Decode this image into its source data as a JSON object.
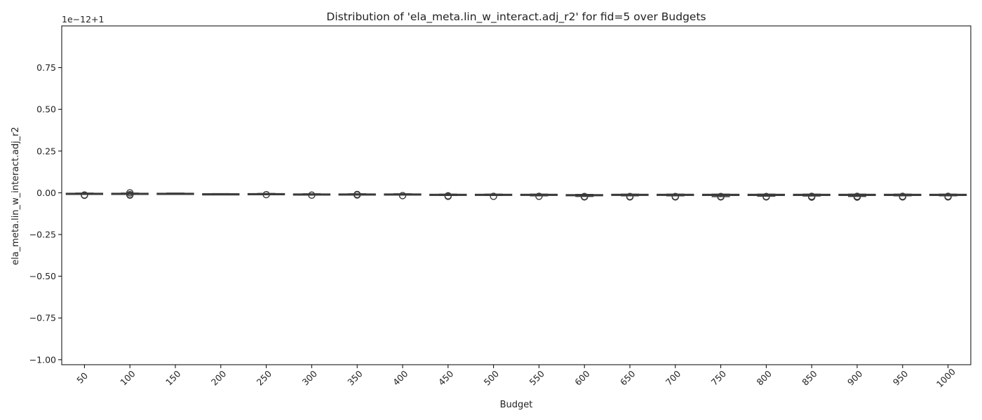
{
  "chart_data": {
    "type": "box",
    "title": "Distribution of 'ela_meta.lin_w_interact.adj_r2' for fid=5 over Budgets",
    "xlabel": "Budget",
    "ylabel": "ela_meta.lin_w_interact.adj_r2",
    "offset_label": "1e−12+1",
    "ylim": [
      -1.03,
      1.0
    ],
    "yticks": [
      {
        "value": 0.75,
        "label": "0.75"
      },
      {
        "value": 0.5,
        "label": "0.50"
      },
      {
        "value": 0.25,
        "label": "0.25"
      },
      {
        "value": 0.0,
        "label": "0.00"
      },
      {
        "value": -0.25,
        "label": "−0.25"
      },
      {
        "value": -0.5,
        "label": "−0.50"
      },
      {
        "value": -0.75,
        "label": "−0.75"
      },
      {
        "value": -1.0,
        "label": "−1.00"
      }
    ],
    "categories": [
      "50",
      "100",
      "150",
      "200",
      "250",
      "300",
      "350",
      "400",
      "450",
      "500",
      "550",
      "600",
      "650",
      "700",
      "750",
      "800",
      "850",
      "900",
      "950",
      "1000"
    ],
    "boxes": [
      {
        "whislo": -0.01,
        "q1": -0.009,
        "med": -0.006,
        "q3": -0.003,
        "whishi": -0.002,
        "fliers": [
          -0.013,
          -0.015
        ]
      },
      {
        "whislo": -0.006,
        "q1": -0.005,
        "med": -0.004,
        "q3": -0.003,
        "whishi": -0.002,
        "fliers": [
          -0.011,
          -0.014,
          0.0
        ]
      },
      {
        "whislo": -0.006,
        "q1": -0.005,
        "med": -0.004,
        "q3": -0.003,
        "whishi": -0.002,
        "fliers": []
      },
      {
        "whislo": -0.007,
        "q1": -0.006,
        "med": -0.006,
        "q3": -0.006,
        "whishi": -0.005,
        "fliers": []
      },
      {
        "whislo": -0.008,
        "q1": -0.007,
        "med": -0.006,
        "q3": -0.005,
        "whishi": -0.004,
        "fliers": [
          -0.011
        ]
      },
      {
        "whislo": -0.012,
        "q1": -0.01,
        "med": -0.009,
        "q3": -0.007,
        "whishi": -0.006,
        "fliers": [
          -0.014
        ]
      },
      {
        "whislo": -0.012,
        "q1": -0.011,
        "med": -0.009,
        "q3": -0.007,
        "whishi": -0.006,
        "fliers": [
          -0.01,
          -0.013
        ]
      },
      {
        "whislo": -0.011,
        "q1": -0.01,
        "med": -0.009,
        "q3": -0.007,
        "whishi": -0.006,
        "fliers": [
          -0.017
        ]
      },
      {
        "whislo": -0.016,
        "q1": -0.014,
        "med": -0.012,
        "q3": -0.009,
        "whishi": -0.008,
        "fliers": [
          -0.018,
          -0.021
        ]
      },
      {
        "whislo": -0.016,
        "q1": -0.014,
        "med": -0.012,
        "q3": -0.009,
        "whishi": -0.008,
        "fliers": [
          -0.021
        ]
      },
      {
        "whislo": -0.018,
        "q1": -0.015,
        "med": -0.013,
        "q3": -0.009,
        "whishi": -0.008,
        "fliers": [
          -0.021
        ]
      },
      {
        "whislo": -0.022,
        "q1": -0.016,
        "med": -0.013,
        "q3": -0.011,
        "whishi": -0.01,
        "fliers": [
          -0.022,
          -0.025
        ]
      },
      {
        "whislo": -0.018,
        "q1": -0.015,
        "med": -0.013,
        "q3": -0.009,
        "whishi": -0.008,
        "fliers": [
          -0.022,
          -0.025
        ]
      },
      {
        "whislo": -0.018,
        "q1": -0.015,
        "med": -0.013,
        "q3": -0.009,
        "whishi": -0.008,
        "fliers": [
          -0.022,
          -0.025
        ]
      },
      {
        "whislo": -0.023,
        "q1": -0.016,
        "med": -0.013,
        "q3": -0.009,
        "whishi": -0.008,
        "fliers": [
          -0.022,
          -0.025
        ]
      },
      {
        "whislo": -0.02,
        "q1": -0.016,
        "med": -0.013,
        "q3": -0.009,
        "whishi": -0.008,
        "fliers": [
          -0.022,
          -0.025
        ]
      },
      {
        "whislo": -0.019,
        "q1": -0.016,
        "med": -0.013,
        "q3": -0.009,
        "whishi": -0.008,
        "fliers": [
          -0.021,
          -0.026
        ]
      },
      {
        "whislo": -0.022,
        "q1": -0.016,
        "med": -0.013,
        "q3": -0.009,
        "whishi": -0.008,
        "fliers": [
          -0.021,
          -0.026
        ]
      },
      {
        "whislo": -0.018,
        "q1": -0.016,
        "med": -0.013,
        "q3": -0.009,
        "whishi": -0.008,
        "fliers": [
          -0.021,
          -0.025
        ]
      },
      {
        "whislo": -0.018,
        "q1": -0.016,
        "med": -0.013,
        "q3": -0.009,
        "whishi": -0.008,
        "fliers": [
          -0.021,
          -0.025
        ]
      }
    ],
    "box_color": "#3b3b3b",
    "grid": false,
    "legend": "none"
  }
}
